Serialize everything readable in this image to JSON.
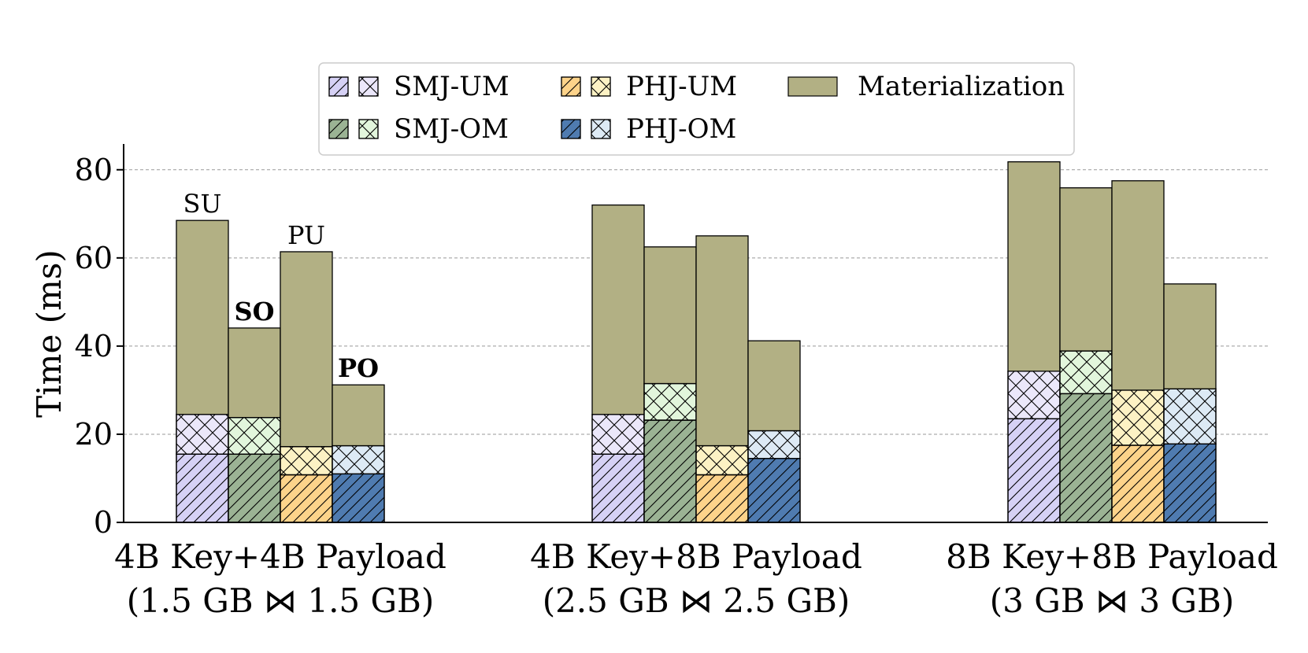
{
  "chart_data": {
    "type": "bar",
    "subtype": "grouped-stacked",
    "xlabel": "",
    "ylabel": "Time (ms)",
    "ylim": [
      0,
      86
    ],
    "yticks": [
      0,
      20,
      40,
      60,
      80
    ],
    "grid": "horizontal-dashed",
    "legend_position": "top-center",
    "legend": [
      "SMJ-UM",
      "PHJ-UM",
      "Materialization",
      "SMJ-OM",
      "PHJ-OM"
    ],
    "categories": [
      {
        "line1": "4B Key+4B Payload",
        "line2": "(1.5 GB ⋈ 1.5 GB)"
      },
      {
        "line1": "4B Key+8B Payload",
        "line2": "(2.5 GB ⋈ 2.5 GB)"
      },
      {
        "line1": "8B Key+8B Payload",
        "line2": "(3 GB ⋈ 3 GB)"
      }
    ],
    "series": [
      {
        "name": "SMJ-UM",
        "label": "SU",
        "label_bold": false,
        "color": "#d6d1f5",
        "first_phase": [
          15.5,
          15.5,
          23.5
        ],
        "second_phase": [
          9.0,
          9.0,
          10.8
        ],
        "materialization": [
          44.0,
          47.5,
          47.5
        ]
      },
      {
        "name": "SMJ-OM",
        "label": "SO",
        "label_bold": true,
        "color": "#9bb394",
        "first_phase": [
          15.5,
          23.2,
          29.2
        ],
        "second_phase": [
          8.3,
          8.3,
          9.7
        ],
        "materialization": [
          20.3,
          31.0,
          37.0
        ]
      },
      {
        "name": "PHJ-UM",
        "label": "PU",
        "label_bold": false,
        "color": "#fdd38a",
        "first_phase": [
          10.8,
          10.8,
          17.5
        ],
        "second_phase": [
          6.4,
          6.6,
          12.5
        ],
        "materialization": [
          44.2,
          47.6,
          47.5
        ]
      },
      {
        "name": "PHJ-OM",
        "label": "PO",
        "label_bold": true,
        "color": "#4f7bb0",
        "first_phase": [
          11.0,
          14.5,
          17.8
        ],
        "second_phase": [
          6.4,
          6.3,
          12.5
        ],
        "materialization": [
          13.8,
          20.4,
          23.8
        ]
      }
    ],
    "materialization_color": "#b2b084",
    "second_phase_colors": [
      "#ebe7fa",
      "#e2f6dc",
      "#fdf2c4",
      "#ddeaf5"
    ]
  }
}
